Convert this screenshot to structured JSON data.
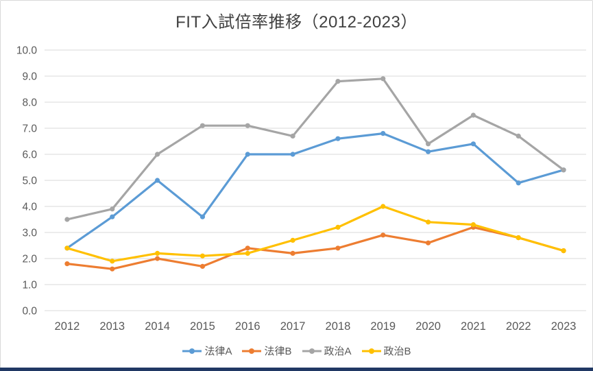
{
  "title": "FIT入試倍率推移（2012-2023）",
  "colors": {
    "title_text": "#404040",
    "axis_text": "#595959",
    "gridline": "#D9D9D9",
    "chart_border": "#D9D9D9",
    "bottom_bar": "#203864",
    "background": "#FFFFFF"
  },
  "chart_data": {
    "type": "line",
    "title": "FIT入試倍率推移（2012-2023）",
    "categories": [
      "2012",
      "2013",
      "2014",
      "2015",
      "2016",
      "2017",
      "2018",
      "2019",
      "2020",
      "2021",
      "2022",
      "2023"
    ],
    "series": [
      {
        "id": "law-a",
        "name": "法律A",
        "color": "#5B9BD5",
        "values": [
          2.4,
          3.6,
          5.0,
          3.6,
          6.0,
          6.0,
          6.6,
          6.8,
          6.1,
          6.4,
          4.9,
          5.4
        ]
      },
      {
        "id": "law-b",
        "name": "法律B",
        "color": "#ED7D31",
        "values": [
          1.8,
          1.6,
          2.0,
          1.7,
          2.4,
          2.2,
          2.4,
          2.9,
          2.6,
          3.2,
          2.8,
          2.3
        ]
      },
      {
        "id": "politics-a",
        "name": "政治A",
        "color": "#A5A5A5",
        "values": [
          3.5,
          3.9,
          6.0,
          7.1,
          7.1,
          6.7,
          8.8,
          8.9,
          6.4,
          7.5,
          6.7,
          5.4
        ]
      },
      {
        "id": "politics-b",
        "name": "政治B",
        "color": "#FFC000",
        "values": [
          2.4,
          1.9,
          2.2,
          2.1,
          2.2,
          2.7,
          3.2,
          4.0,
          3.4,
          3.3,
          2.8,
          2.3
        ]
      }
    ],
    "xlabel": "",
    "ylabel": "",
    "ylim": [
      0,
      10
    ],
    "ytick_step": 1.0,
    "ytick_labels": [
      "0.0",
      "1.0",
      "2.0",
      "3.0",
      "4.0",
      "5.0",
      "6.0",
      "7.0",
      "8.0",
      "9.0",
      "10.0"
    ],
    "grid": true,
    "gridlines": "horizontal",
    "marker": "circle",
    "legend_position": "bottom"
  }
}
